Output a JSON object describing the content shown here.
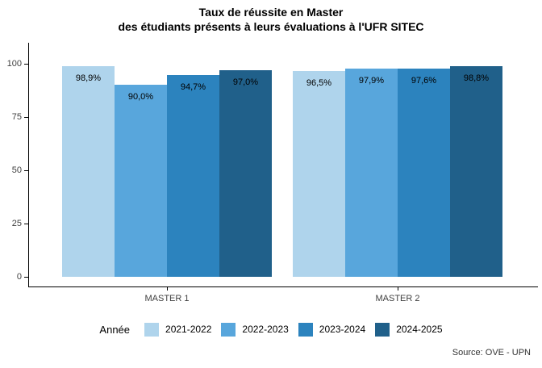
{
  "title": {
    "line1": "Taux de réussite en Master",
    "line2": "des étudiants présents à leurs évaluations à l'UFR SITEC"
  },
  "legend": {
    "title": "Année"
  },
  "source_note": "Source: OVE - UPN",
  "chart_data": {
    "type": "bar",
    "title": "Taux de réussite en Master des étudiants présents à leurs évaluations à l'UFR SITEC",
    "categories": [
      "MASTER 1",
      "MASTER 2"
    ],
    "series": [
      {
        "name": "2021-2022",
        "color": "#AFD4EC",
        "values": [
          98.9,
          96.5
        ],
        "labels": [
          "98,9%",
          "96,5%"
        ]
      },
      {
        "name": "2022-2023",
        "color": "#58A6DC",
        "values": [
          90.0,
          97.9
        ],
        "labels": [
          "90,0%",
          "97,9%"
        ]
      },
      {
        "name": "2023-2024",
        "color": "#2C83BE",
        "values": [
          94.7,
          97.6
        ],
        "labels": [
          "94,7%",
          "97,6%"
        ]
      },
      {
        "name": "2024-2025",
        "color": "#20608A",
        "values": [
          97.0,
          98.8
        ],
        "labels": [
          "97,0%",
          "98,8%"
        ]
      }
    ],
    "xlabel": "",
    "ylabel": "",
    "ylim": [
      0,
      100
    ],
    "y_ticks": [
      0,
      25,
      50,
      75,
      100
    ],
    "grid": false,
    "legend_position": "bottom",
    "value_labels": "inside_top, percent with decimal comma"
  }
}
